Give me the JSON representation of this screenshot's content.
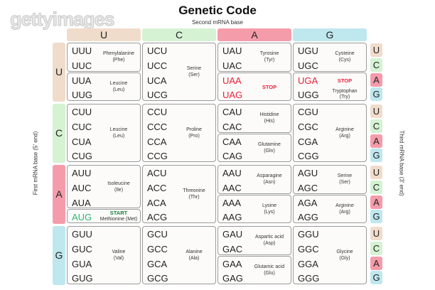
{
  "watermark": "gettyimages",
  "title": "Genetic Code",
  "second_base_label": "Second mRNA base",
  "first_base_label": "First mRNA base (5' end)",
  "third_base_label": "Third mRNA base (3' end)",
  "colors": {
    "U": "#f0dccb",
    "C": "#d5f2d3",
    "A": "#f59cab",
    "G": "#bfe7ee",
    "stop": "#e8203a",
    "start_codon": "#2bb673",
    "start_label": "#1a7f3e"
  },
  "bases": [
    "U",
    "C",
    "A",
    "G"
  ],
  "rows": [
    [
      [
        {
          "codons": [
            "UUU",
            "UUC"
          ],
          "name": "Phenylalanine",
          "abbr": "(Phe)"
        },
        {
          "codons": [
            "UUA",
            "UUG"
          ],
          "name": "Leucine",
          "abbr": "(Leu)"
        }
      ],
      [
        {
          "codons": [
            "UCU",
            "UCC",
            "UCA",
            "UCG"
          ],
          "name": "Serine",
          "abbr": "(Ser)"
        }
      ],
      [
        {
          "codons": [
            "UAU",
            "UAC"
          ],
          "name": "Tyrosine",
          "abbr": "(Tyr)"
        },
        {
          "codons": [
            "UAA",
            "UAG"
          ],
          "stop": "STOP",
          "stop_codons": true
        }
      ],
      [
        {
          "codons": [
            "UGU",
            "UGC"
          ],
          "name": "Cysteine",
          "abbr": "(Cys)"
        },
        {
          "codons": [
            "UGA",
            "UGG"
          ],
          "split": true,
          "stop": "STOP",
          "name": "Tryptophan",
          "abbr": "(Try)"
        }
      ]
    ],
    [
      [
        {
          "codons": [
            "CUU",
            "CUC",
            "CUA",
            "CUG"
          ],
          "name": "Leucine",
          "abbr": "(Leu)"
        }
      ],
      [
        {
          "codons": [
            "CCU",
            "CCC",
            "CCA",
            "CCG"
          ],
          "name": "Proline",
          "abbr": "(Pro)"
        }
      ],
      [
        {
          "codons": [
            "CAU",
            "CAC"
          ],
          "name": "Histidine",
          "abbr": "(His)"
        },
        {
          "codons": [
            "CAA",
            "CAG"
          ],
          "name": "Glutamine",
          "abbr": "(Gln)"
        }
      ],
      [
        {
          "codons": [
            "CGU",
            "CGC",
            "CGA",
            "CGG"
          ],
          "name": "Arginine",
          "abbr": "(Arg)"
        }
      ]
    ],
    [
      [
        {
          "codons": [
            "AUU",
            "AUC",
            "AUA"
          ],
          "name": "Isoleucine",
          "abbr": "(Ile)"
        },
        {
          "codons": [
            "AUG"
          ],
          "start": "START",
          "name": "Methionine (Met)"
        }
      ],
      [
        {
          "codons": [
            "ACU",
            "ACC",
            "ACA",
            "ACG"
          ],
          "name": "Threonine",
          "abbr": "(Thr)"
        }
      ],
      [
        {
          "codons": [
            "AAU",
            "AAC"
          ],
          "name": "Asparagine",
          "abbr": "(Asn)"
        },
        {
          "codons": [
            "AAA",
            "AAG"
          ],
          "name": "Lysine",
          "abbr": "(Lys)"
        }
      ],
      [
        {
          "codons": [
            "AGU",
            "AGC"
          ],
          "name": "Serine",
          "abbr": "(Ser)"
        },
        {
          "codons": [
            "AGA",
            "AGG"
          ],
          "name": "Arginine",
          "abbr": "(Arg)"
        }
      ]
    ],
    [
      [
        {
          "codons": [
            "GUU",
            "GUC",
            "GUA",
            "GUG"
          ],
          "name": "Valine",
          "abbr": "(Val)"
        }
      ],
      [
        {
          "codons": [
            "GCU",
            "GCC",
            "GCA",
            "GCG"
          ],
          "name": "Alanine",
          "abbr": "(Ala)"
        }
      ],
      [
        {
          "codons": [
            "GAU",
            "GAC"
          ],
          "name": "Aspartic acid",
          "abbr": "(Asp)"
        },
        {
          "codons": [
            "GAA",
            "GAG"
          ],
          "name": "Glutamic acid",
          "abbr": "(Glu)"
        }
      ],
      [
        {
          "codons": [
            "GGU",
            "GGC",
            "GGA",
            "GGG"
          ],
          "name": "Glycine",
          "abbr": "(Gly)"
        }
      ]
    ]
  ]
}
